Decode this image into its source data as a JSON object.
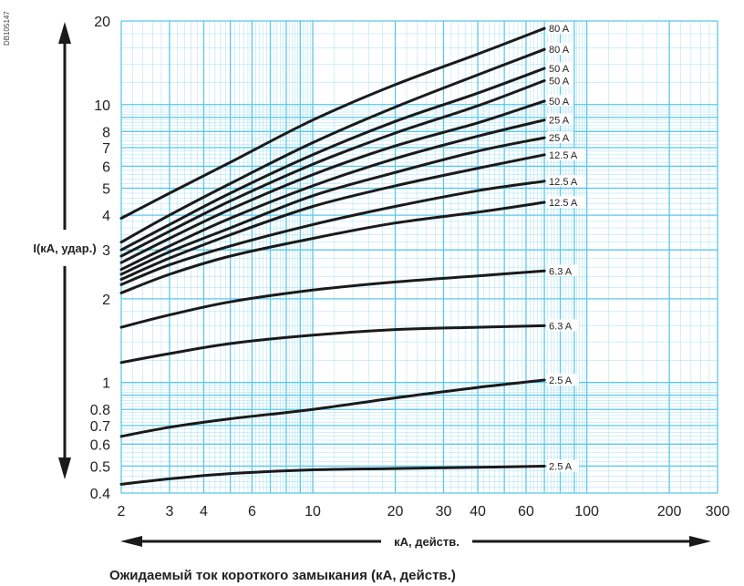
{
  "doc_id": "DB105147",
  "caption": "Ожидаемый ток короткого замыкания (кА, действ.)",
  "chart_data": {
    "type": "line",
    "title": "",
    "xlabel": "кА, действ.",
    "ylabel": "I(кА, удар.)",
    "x_scale": "log",
    "y_scale": "log",
    "xlim": [
      2,
      300
    ],
    "ylim": [
      0.4,
      20
    ],
    "x_ticks": [
      2,
      3,
      4,
      6,
      10,
      20,
      30,
      40,
      60,
      100,
      200,
      300
    ],
    "y_ticks": [
      0.4,
      0.5,
      0.6,
      0.7,
      0.8,
      1,
      2,
      3,
      4,
      5,
      6,
      7,
      8,
      10,
      20
    ],
    "grid": true,
    "grid_color": "#5bc8ea",
    "line_color": "#1a1a1a",
    "x_arrow_color": "#1a1a1a",
    "series": [
      {
        "label": "80 A",
        "x": [
          2,
          3,
          5,
          10,
          20,
          40,
          70
        ],
        "y": [
          3.9,
          4.8,
          6.2,
          8.8,
          11.8,
          15.2,
          18.8
        ]
      },
      {
        "label": "80 A",
        "x": [
          2,
          3,
          5,
          10,
          20,
          40,
          70
        ],
        "y": [
          3.2,
          4.0,
          5.2,
          7.3,
          9.8,
          12.8,
          15.8
        ]
      },
      {
        "label": "50 A",
        "x": [
          2,
          3,
          5,
          10,
          20,
          40,
          70
        ],
        "y": [
          3.0,
          3.7,
          4.8,
          6.6,
          8.7,
          11.0,
          13.5
        ]
      },
      {
        "label": "50 A",
        "x": [
          2,
          3,
          5,
          10,
          20,
          40,
          70
        ],
        "y": [
          2.85,
          3.5,
          4.5,
          6.1,
          7.9,
          9.9,
          12.2
        ]
      },
      {
        "label": "50 A",
        "x": [
          2,
          3,
          5,
          10,
          20,
          40,
          70
        ],
        "y": [
          2.7,
          3.3,
          4.2,
          5.6,
          7.1,
          8.6,
          10.3
        ]
      },
      {
        "label": "25 A",
        "x": [
          2,
          3,
          5,
          10,
          20,
          40,
          70
        ],
        "y": [
          2.55,
          3.1,
          3.9,
          5.1,
          6.4,
          7.7,
          8.8
        ]
      },
      {
        "label": "25 A",
        "x": [
          2,
          3,
          5,
          10,
          20,
          40,
          70
        ],
        "y": [
          2.45,
          2.95,
          3.6,
          4.7,
          5.7,
          6.8,
          7.6
        ]
      },
      {
        "label": "12.5 A",
        "x": [
          2,
          3,
          5,
          10,
          20,
          40,
          70
        ],
        "y": [
          2.35,
          2.8,
          3.4,
          4.3,
          5.1,
          5.9,
          6.6
        ]
      },
      {
        "label": "12.5 A",
        "x": [
          2,
          3,
          5,
          10,
          20,
          40,
          70
        ],
        "y": [
          2.25,
          2.65,
          3.1,
          3.7,
          4.3,
          4.9,
          5.3
        ]
      },
      {
        "label": "12.5 A",
        "x": [
          2,
          3,
          5,
          10,
          20,
          40,
          70
        ],
        "y": [
          2.1,
          2.45,
          2.85,
          3.3,
          3.75,
          4.1,
          4.45
        ]
      },
      {
        "label": "6.3 A",
        "x": [
          2,
          3,
          5,
          10,
          20,
          40,
          70
        ],
        "y": [
          1.58,
          1.75,
          1.95,
          2.15,
          2.3,
          2.42,
          2.52
        ]
      },
      {
        "label": "6.3 A",
        "x": [
          2,
          3,
          5,
          10,
          20,
          40,
          70
        ],
        "y": [
          1.18,
          1.27,
          1.38,
          1.48,
          1.55,
          1.58,
          1.6
        ]
      },
      {
        "label": "2.5 A",
        "x": [
          2,
          3,
          5,
          10,
          20,
          40,
          70
        ],
        "y": [
          0.64,
          0.69,
          0.74,
          0.8,
          0.88,
          0.96,
          1.02
        ]
      },
      {
        "label": "2.5 A",
        "x": [
          2,
          3,
          5,
          10,
          20,
          40,
          70
        ],
        "y": [
          0.43,
          0.45,
          0.47,
          0.485,
          0.49,
          0.495,
          0.5
        ]
      }
    ]
  }
}
